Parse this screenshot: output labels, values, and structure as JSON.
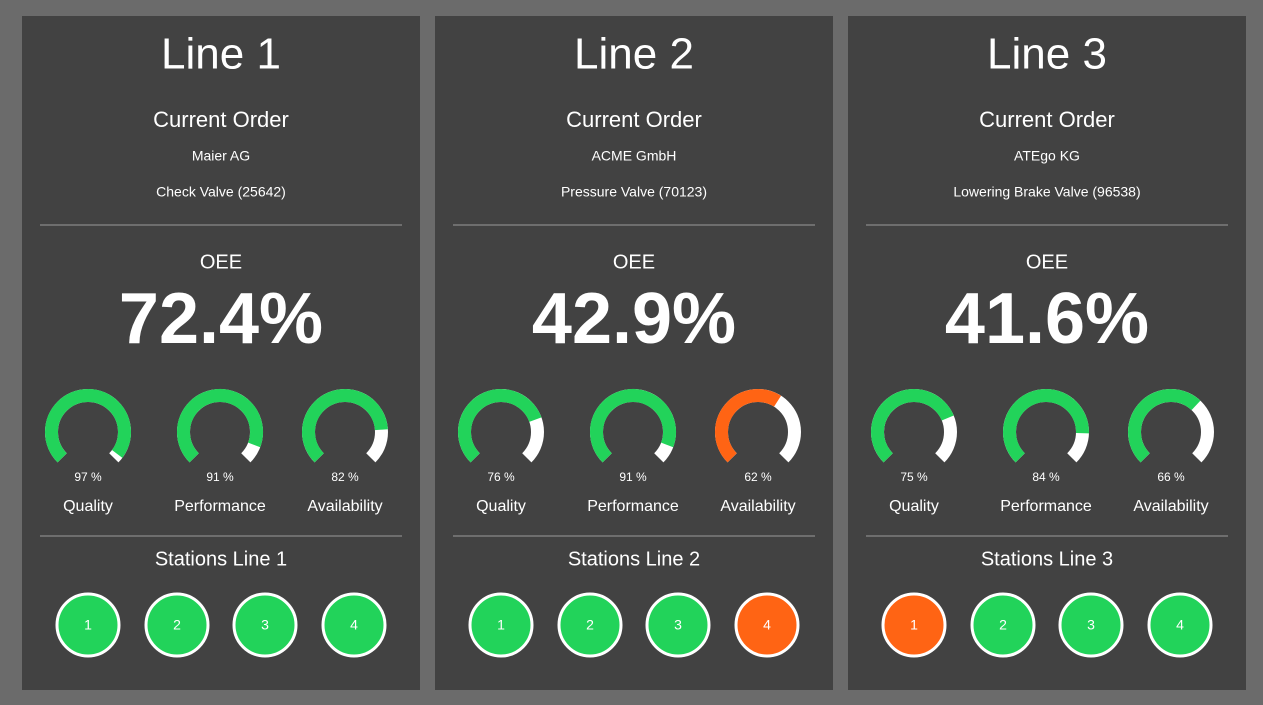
{
  "panels": [
    {
      "title": "Line 1",
      "order_heading": "Current Order",
      "customer": "Maier AG",
      "product": "Check Valve (25642)",
      "oee_label": "OEE",
      "oee": {
        "value": 72.4,
        "label": "72.4%"
      },
      "gauges": [
        {
          "name": "Quality",
          "value": 97,
          "value_label": "97 %",
          "color": "#22d35a"
        },
        {
          "name": "Performance",
          "value": 91,
          "value_label": "91 %",
          "color": "#22d35a"
        },
        {
          "name": "Availability",
          "value": 82,
          "value_label": "82 %",
          "color": "#22d35a"
        }
      ],
      "stations_title": "Stations Line 1",
      "stations": [
        {
          "number": 1,
          "color": "#22d35a"
        },
        {
          "number": 2,
          "color": "#22d35a"
        },
        {
          "number": 3,
          "color": "#22d35a"
        },
        {
          "number": 4,
          "color": "#22d35a"
        }
      ]
    },
    {
      "title": "Line 2",
      "order_heading": "Current Order",
      "customer": "ACME GmbH",
      "product": "Pressure Valve (70123)",
      "oee_label": "OEE",
      "oee": {
        "value": 42.9,
        "label": "42.9%"
      },
      "gauges": [
        {
          "name": "Quality",
          "value": 76,
          "value_label": "76 %",
          "color": "#22d35a"
        },
        {
          "name": "Performance",
          "value": 91,
          "value_label": "91 %",
          "color": "#22d35a"
        },
        {
          "name": "Availability",
          "value": 62,
          "value_label": "62 %",
          "color": "#ff6414"
        }
      ],
      "stations_title": "Stations Line 2",
      "stations": [
        {
          "number": 1,
          "color": "#22d35a"
        },
        {
          "number": 2,
          "color": "#22d35a"
        },
        {
          "number": 3,
          "color": "#22d35a"
        },
        {
          "number": 4,
          "color": "#ff6414"
        }
      ]
    },
    {
      "title": "Line 3",
      "order_heading": "Current Order",
      "customer": "ATEgo KG",
      "product": "Lowering Brake Valve (96538)",
      "oee_label": "OEE",
      "oee": {
        "value": 41.6,
        "label": "41.6%"
      },
      "gauges": [
        {
          "name": "Quality",
          "value": 75,
          "value_label": "75 %",
          "color": "#22d35a"
        },
        {
          "name": "Performance",
          "value": 84,
          "value_label": "84 %",
          "color": "#22d35a"
        },
        {
          "name": "Availability",
          "value": 66,
          "value_label": "66 %",
          "color": "#22d35a"
        }
      ],
      "stations_title": "Stations Line 3",
      "stations": [
        {
          "number": 1,
          "color": "#ff6414"
        },
        {
          "number": 2,
          "color": "#22d35a"
        },
        {
          "number": 3,
          "color": "#22d35a"
        },
        {
          "number": 4,
          "color": "#22d35a"
        }
      ]
    }
  ]
}
